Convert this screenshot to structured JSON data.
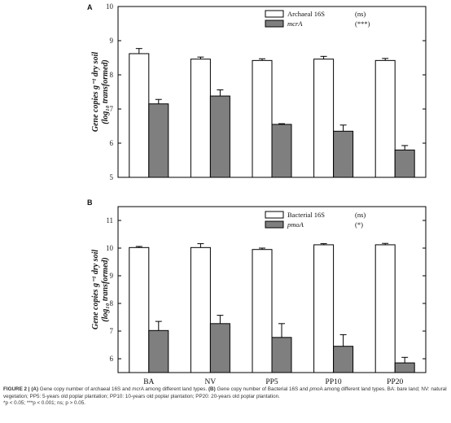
{
  "chart_data": [
    {
      "type": "bar",
      "panel_label": "A",
      "categories": [
        "BA",
        "NV",
        "PP5",
        "PP10",
        "PP20"
      ],
      "ylim": [
        5,
        10
      ],
      "yticks": [
        "5",
        "6",
        "7",
        "8",
        "9",
        "10"
      ],
      "ylabel_line1": "Gene copies g⁻¹ dry soil",
      "ylabel_line2": "(log₁₀ transformed)",
      "legend_position": "top-right",
      "series": [
        {
          "name": "Archaeal 16S",
          "significance": "(ns)",
          "color": "#ffffff",
          "values": [
            8.62,
            8.46,
            8.42,
            8.46,
            8.42
          ],
          "errors": [
            0.15,
            0.06,
            0.05,
            0.08,
            0.06
          ]
        },
        {
          "name": "mcrA",
          "significance": "(***)",
          "color": "#7f7f7f",
          "values": [
            7.15,
            7.38,
            6.55,
            6.35,
            5.8
          ],
          "errors": [
            0.13,
            0.18,
            0.02,
            0.18,
            0.13
          ]
        }
      ]
    },
    {
      "type": "bar",
      "panel_label": "B",
      "categories": [
        "BA",
        "NV",
        "PP5",
        "PP10",
        "PP20"
      ],
      "ylim": [
        5.5,
        11.5
      ],
      "yticks": [
        "6",
        "7",
        "8",
        "9",
        "10",
        "11"
      ],
      "ylabel_line1": "Gene copies g⁻¹ dry soil",
      "ylabel_line2": "(log₁₀ transformed)",
      "legend_position": "top-right",
      "series": [
        {
          "name": "Bacterial 16S",
          "significance": "(ns)",
          "color": "#ffffff",
          "values": [
            10.02,
            10.02,
            9.95,
            10.12,
            10.12
          ],
          "errors": [
            0.04,
            0.14,
            0.05,
            0.04,
            0.05
          ]
        },
        {
          "name": "pmoA",
          "significance": "(*)",
          "color": "#7f7f7f",
          "values": [
            7.02,
            7.27,
            6.77,
            6.45,
            5.85
          ],
          "errors": [
            0.33,
            0.3,
            0.5,
            0.42,
            0.2
          ]
        }
      ]
    }
  ],
  "caption": {
    "fig_label": "FIGURE 2 |",
    "a_label": "(A)",
    "a_text_pre": " Gene copy number of archaeal 16S and ",
    "a_gene": "mcr",
    "a_gene_suffix": "A",
    "a_text_post": " among different land types. ",
    "b_label": "(B)",
    "b_text_pre": " Gene copy number of Bacterial 16S and ",
    "b_gene": "pmo",
    "b_gene_suffix": "A",
    "b_text_post": " among different land types. BA: bare land; NV: natural vegetation; PP5: 5-years old poplar plantation; PP10: 10-years old poplar plantation; PP20: 20-years old poplar plantation.",
    "line3": "*p < 0.05; ***p < 0.001; ns; p > 0.05."
  }
}
